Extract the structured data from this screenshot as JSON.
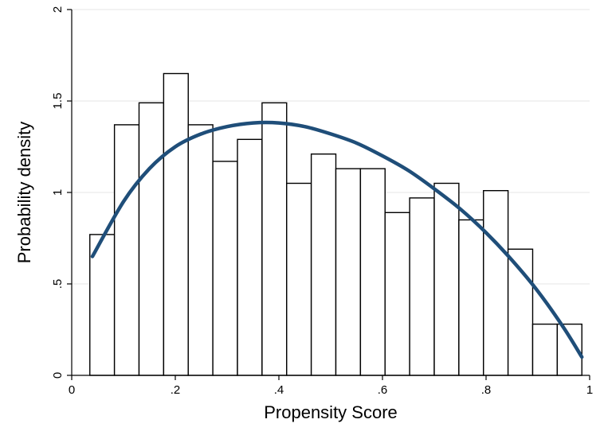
{
  "chart_data": {
    "type": "bar",
    "subtype": "histogram-with-density-curve",
    "xlabel": "Propensity Score",
    "ylabel": "Probability density",
    "xlim": [
      0,
      1
    ],
    "ylim": [
      0,
      2
    ],
    "x_ticks": [
      {
        "value": 0,
        "label": "0"
      },
      {
        "value": 0.2,
        "label": ".2"
      },
      {
        "value": 0.4,
        "label": ".4"
      },
      {
        "value": 0.6,
        "label": ".6"
      },
      {
        "value": 0.8,
        "label": ".8"
      },
      {
        "value": 1,
        "label": "1"
      }
    ],
    "y_ticks": [
      {
        "value": 0,
        "label": "0"
      },
      {
        "value": 0.5,
        "label": ".5"
      },
      {
        "value": 1,
        "label": "1"
      },
      {
        "value": 1.5,
        "label": "1.5"
      },
      {
        "value": 2,
        "label": "2"
      }
    ],
    "grid": true,
    "bins": {
      "start": 0.035,
      "width": 0.0475,
      "values": [
        0.77,
        1.37,
        1.49,
        1.65,
        1.37,
        1.17,
        1.29,
        1.49,
        1.05,
        1.21,
        1.13,
        1.13,
        0.89,
        0.97,
        1.05,
        0.85,
        1.01,
        0.69,
        0.28,
        0.28
      ]
    },
    "density_curve": {
      "color": "#1f4e79",
      "x": [
        0.04,
        0.1,
        0.15,
        0.2,
        0.25,
        0.3,
        0.35,
        0.4,
        0.45,
        0.5,
        0.55,
        0.6,
        0.65,
        0.7,
        0.75,
        0.8,
        0.85,
        0.9,
        0.95,
        0.985
      ],
      "y": [
        0.65,
        0.95,
        1.13,
        1.25,
        1.32,
        1.36,
        1.38,
        1.38,
        1.36,
        1.32,
        1.27,
        1.2,
        1.12,
        1.02,
        0.91,
        0.78,
        0.63,
        0.46,
        0.26,
        0.1
      ]
    }
  }
}
